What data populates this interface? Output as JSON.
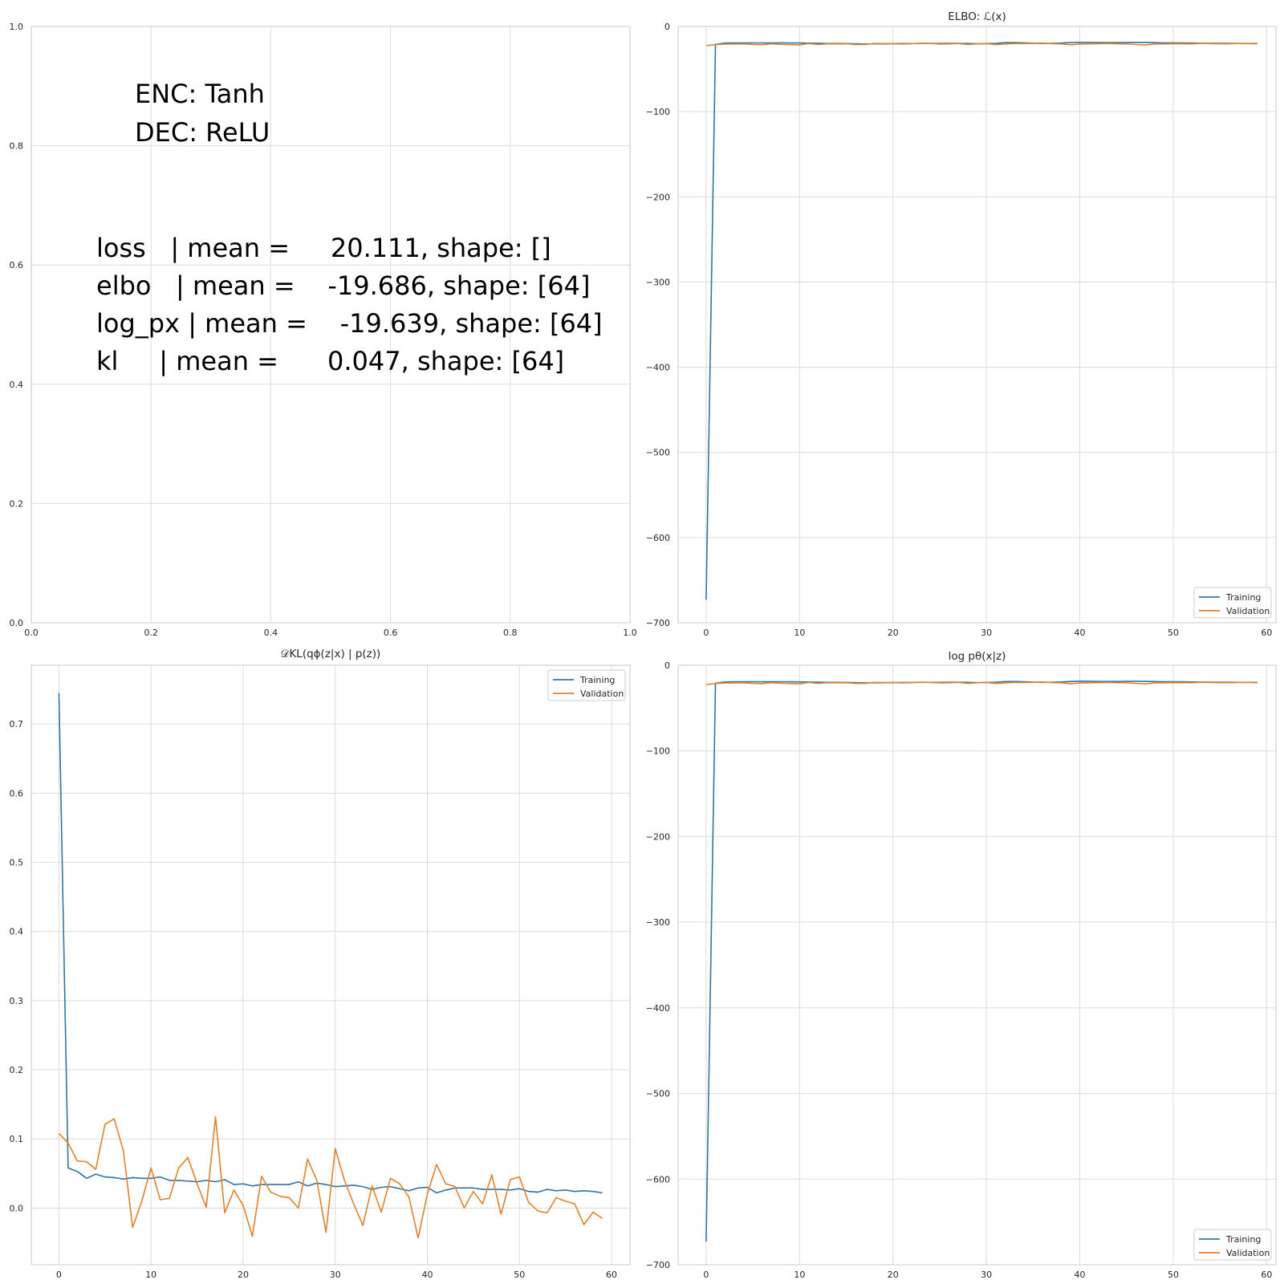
{
  "chart_data": [
    {
      "type": "text",
      "title": "",
      "xlim": [
        0.0,
        1.0
      ],
      "ylim": [
        0.0,
        1.0
      ],
      "xticks": [
        "0.0",
        "0.2",
        "0.4",
        "0.6",
        "0.8",
        "1.0"
      ],
      "yticks": [
        "0.0",
        "0.2",
        "0.4",
        "0.6",
        "0.8",
        "1.0"
      ],
      "grid": true,
      "text_lines": [
        "ENC: Tanh",
        "DEC: ReLU",
        "loss   | mean =     20.111, shape: []",
        "elbo   | mean =    -19.686, shape: [64]",
        "log_px | mean =    -19.639, shape: [64]",
        "kl     | mean =      0.047, shape: [64]"
      ]
    },
    {
      "type": "line",
      "title": "ELBO: ℒ(x)",
      "xlim": [
        -3,
        61
      ],
      "ylim": [
        -700,
        0
      ],
      "xticks": [
        "0",
        "10",
        "20",
        "30",
        "40",
        "50",
        "60"
      ],
      "yticks": [
        "−700",
        "−600",
        "−500",
        "−400",
        "−300",
        "−200",
        "−100",
        "0"
      ],
      "grid": true,
      "legend": "lower-right",
      "series": [
        {
          "name": "Training",
          "color": "#3274a1",
          "values": [
            -673,
            -21,
            -19.5,
            -19.3,
            -19.3,
            -19.3,
            -19.3,
            -19.3,
            -19.2,
            -19.3,
            -19.4,
            -19.6,
            -19.7,
            -19.9,
            -20.0,
            -20.1,
            -20.3,
            -20.5,
            -20.5,
            -20.4,
            -20.2,
            -20.1,
            -20.1,
            -20.0,
            -20.0,
            -19.9,
            -19.8,
            -19.8,
            -19.9,
            -20.3,
            -20.1,
            -19.8,
            -19.0,
            -18.9,
            -19.2,
            -19.7,
            -20.0,
            -19.8,
            -19.5,
            -18.9,
            -18.6,
            -18.7,
            -18.9,
            -18.9,
            -18.9,
            -18.8,
            -18.7,
            -18.8,
            -19.0,
            -19.3,
            -19.2,
            -19.3,
            -19.5,
            -19.6,
            -19.7,
            -19.8,
            -19.8,
            -19.9,
            -19.9,
            -19.9
          ]
        },
        {
          "name": "Validation",
          "color": "#e1812c",
          "values": [
            -22.5,
            -21.3,
            -20.7,
            -20.6,
            -20.5,
            -21.2,
            -21.4,
            -20.3,
            -21.0,
            -21.3,
            -21.6,
            -20.0,
            -21.2,
            -20.3,
            -20.4,
            -20.3,
            -21.2,
            -21.2,
            -20.0,
            -20.2,
            -20.2,
            -20.6,
            -20.1,
            -19.7,
            -20.0,
            -20.6,
            -20.5,
            -20.0,
            -21.2,
            -20.5,
            -20.1,
            -21.3,
            -20.6,
            -20.0,
            -20.1,
            -20.0,
            -19.5,
            -20.2,
            -20.5,
            -21.5,
            -20.7,
            -20.4,
            -20.2,
            -20.0,
            -20.3,
            -20.5,
            -21.2,
            -21.8,
            -20.6,
            -20.6,
            -20.2,
            -20.3,
            -20.4,
            -19.7,
            -20.1,
            -20.3,
            -20.3,
            -20.0,
            -20.1,
            -20.3
          ]
        }
      ]
    },
    {
      "type": "line",
      "title": "𝒟KL(qϕ(z|x) | p(z))",
      "xlim": [
        -3,
        62
      ],
      "ylim": [
        -0.082,
        0.785
      ],
      "xticks": [
        "0",
        "10",
        "20",
        "30",
        "40",
        "50",
        "60"
      ],
      "yticks": [
        "0.0",
        "0.1",
        "0.2",
        "0.3",
        "0.4",
        "0.5",
        "0.6",
        "0.7"
      ],
      "grid": true,
      "legend": "top-right",
      "series": [
        {
          "name": "Training",
          "color": "#3274a1",
          "values": [
            0.745,
            0.058,
            0.053,
            0.043,
            0.049,
            0.045,
            0.044,
            0.042,
            0.044,
            0.043,
            0.043,
            0.045,
            0.04,
            0.04,
            0.039,
            0.038,
            0.04,
            0.038,
            0.041,
            0.034,
            0.035,
            0.032,
            0.034,
            0.034,
            0.034,
            0.034,
            0.038,
            0.032,
            0.036,
            0.034,
            0.031,
            0.032,
            0.033,
            0.031,
            0.027,
            0.03,
            0.031,
            0.028,
            0.025,
            0.029,
            0.03,
            0.022,
            0.026,
            0.029,
            0.029,
            0.029,
            0.027,
            0.027,
            0.027,
            0.026,
            0.028,
            0.024,
            0.023,
            0.027,
            0.025,
            0.026,
            0.024,
            0.025,
            0.024,
            0.022
          ]
        },
        {
          "name": "Validation",
          "color": "#e1812c",
          "values": [
            0.108,
            0.094,
            0.068,
            0.067,
            0.056,
            0.121,
            0.129,
            0.083,
            -0.028,
            0.01,
            0.058,
            0.012,
            0.014,
            0.058,
            0.073,
            0.035,
            0.001,
            0.132,
            -0.007,
            0.026,
            0.004,
            -0.041,
            0.046,
            0.023,
            0.017,
            0.015,
            0.0,
            0.071,
            0.04,
            -0.035,
            0.086,
            0.04,
            0.006,
            -0.025,
            0.032,
            -0.006,
            0.043,
            0.035,
            0.016,
            -0.043,
            0.02,
            0.063,
            0.035,
            0.031,
            0.0,
            0.024,
            0.006,
            0.048,
            -0.009,
            0.041,
            0.045,
            0.008,
            -0.004,
            -0.007,
            0.015,
            0.01,
            0.006,
            -0.024,
            -0.006,
            -0.015
          ]
        }
      ]
    },
    {
      "type": "line",
      "title": "log pθ(x|z)",
      "xlim": [
        -3,
        61
      ],
      "ylim": [
        -700,
        0
      ],
      "xticks": [
        "0",
        "10",
        "20",
        "30",
        "40",
        "50",
        "60"
      ],
      "yticks": [
        "−700",
        "−600",
        "−500",
        "−400",
        "−300",
        "−200",
        "−100",
        "0"
      ],
      "grid": true,
      "legend": "lower-right",
      "series": [
        {
          "name": "Training",
          "color": "#3274a1",
          "values": [
            -673,
            -21,
            -19.5,
            -19.3,
            -19.3,
            -19.3,
            -19.3,
            -19.3,
            -19.2,
            -19.3,
            -19.4,
            -19.6,
            -19.7,
            -19.9,
            -20.0,
            -20.1,
            -20.3,
            -20.5,
            -20.5,
            -20.4,
            -20.2,
            -20.1,
            -20.1,
            -20.0,
            -20.0,
            -19.9,
            -19.8,
            -19.8,
            -19.9,
            -20.3,
            -20.1,
            -19.8,
            -19.0,
            -18.9,
            -19.2,
            -19.7,
            -20.0,
            -19.8,
            -19.5,
            -18.9,
            -18.6,
            -18.7,
            -18.9,
            -18.9,
            -18.9,
            -18.8,
            -18.7,
            -18.8,
            -19.0,
            -19.3,
            -19.2,
            -19.3,
            -19.5,
            -19.6,
            -19.7,
            -19.8,
            -19.8,
            -19.9,
            -19.9,
            -19.9
          ]
        },
        {
          "name": "Validation",
          "color": "#e1812c",
          "values": [
            -22.5,
            -21.3,
            -20.7,
            -20.6,
            -20.5,
            -21.2,
            -21.4,
            -20.3,
            -21.0,
            -21.3,
            -21.6,
            -20.0,
            -21.2,
            -20.3,
            -20.4,
            -20.3,
            -21.2,
            -21.2,
            -20.0,
            -20.2,
            -20.2,
            -20.6,
            -20.1,
            -19.7,
            -20.0,
            -20.6,
            -20.5,
            -20.0,
            -21.2,
            -20.5,
            -20.1,
            -21.3,
            -20.6,
            -20.0,
            -20.1,
            -20.0,
            -19.5,
            -20.2,
            -20.5,
            -21.5,
            -20.7,
            -20.4,
            -20.2,
            -20.0,
            -20.3,
            -20.5,
            -21.2,
            -21.8,
            -20.6,
            -20.6,
            -20.2,
            -20.3,
            -20.4,
            -19.7,
            -20.1,
            -20.3,
            -20.3,
            -20.0,
            -20.1,
            -20.3
          ]
        }
      ]
    }
  ]
}
